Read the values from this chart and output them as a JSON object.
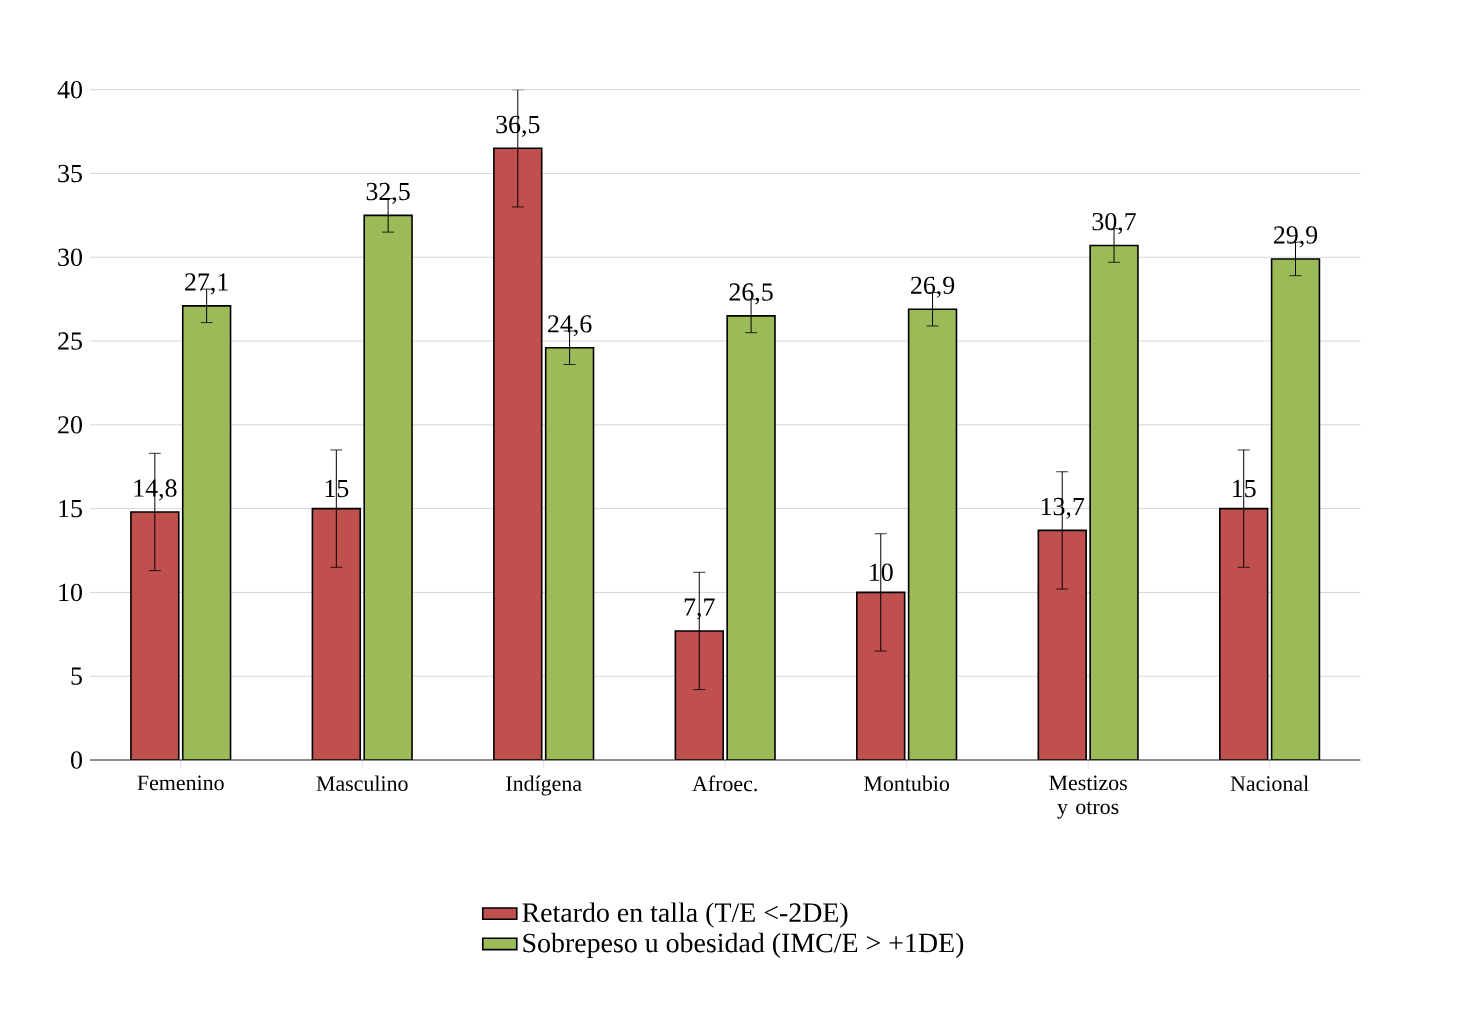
{
  "chart_data": {
    "type": "bar",
    "categories": [
      "Femenino",
      "Masculino",
      "Indígena",
      "Afroec.",
      "Montubio",
      "Mestizos y otros",
      "Nacional"
    ],
    "series": [
      {
        "name": "Retardo en talla (T/E <-2DE)",
        "color": "#c0504d",
        "values": [
          14.8,
          15,
          36.5,
          7.7,
          10,
          13.7,
          15
        ],
        "errors": [
          3.5,
          3.5,
          3.5,
          3.5,
          3.5,
          3.5,
          3.5
        ],
        "value_labels": [
          "14,8",
          "15",
          "36,5",
          "7,7",
          "10",
          "13,7",
          "15"
        ]
      },
      {
        "name": "Sobrepeso u obesidad (IMC/E > +1DE)",
        "color": "#9bbb59",
        "values": [
          27.1,
          32.5,
          24.6,
          26.5,
          26.9,
          30.7,
          29.9
        ],
        "errors": [
          1,
          1,
          1,
          1,
          1,
          1,
          1
        ],
        "value_labels": [
          "27,1",
          "32,5",
          "24,6",
          "26,5",
          "26,9",
          "30,7",
          "29,9"
        ]
      }
    ],
    "ylim": [
      0,
      40
    ],
    "yticks": [
      0,
      5,
      10,
      15,
      20,
      25,
      30,
      35,
      40
    ],
    "grid": "y",
    "legend": "bottom"
  }
}
